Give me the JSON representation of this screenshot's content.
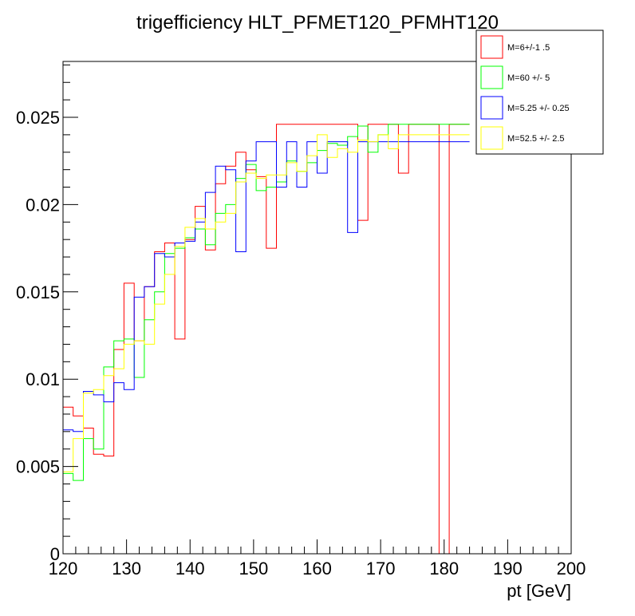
{
  "chart_data": {
    "type": "line",
    "title": "trigefficiency HLT_PFMET120_PFMHT120",
    "xlabel": "pt [GeV]",
    "ylabel": "",
    "xlim": [
      120,
      200
    ],
    "ylim": [
      0,
      0.0282
    ],
    "x_ticks": [
      120,
      130,
      140,
      150,
      160,
      170,
      180,
      190,
      200
    ],
    "x_tick_labels": [
      "120",
      "130",
      "140",
      "150",
      "160",
      "170",
      "180",
      "190",
      "200"
    ],
    "y_ticks": [
      0,
      0.005,
      0.01,
      0.015,
      0.02,
      0.025
    ],
    "y_tick_labels": [
      "0",
      "0.005",
      "0.01",
      "0.015",
      "0.02",
      "0.025"
    ],
    "legend_position": "top-right",
    "bin_width": 1.6,
    "bin_edges_start": 120,
    "series": [
      {
        "name": "M=6+/-1 .5",
        "color": "#ff0000",
        "values": [
          0.0084,
          0.0079,
          0.0072,
          0.0057,
          0.0056,
          0.0117,
          0.0155,
          0.0122,
          0.0153,
          0.0173,
          0.0178,
          0.0123,
          0.018,
          0.0199,
          0.0174,
          0.0212,
          0.0222,
          0.023,
          0.022,
          0.0216,
          0.0175,
          0.0246,
          0.0246,
          0.0246,
          0.0246,
          0.0246,
          0.0246,
          0.0246,
          0.0246,
          0.0191,
          0.0246,
          0.0246,
          0.0246,
          0.0218,
          0.0246,
          0.0246,
          0.0246,
          0.0,
          0.0246,
          0.0246
        ]
      },
      {
        "name": "M=60 +/- 5",
        "color": "#00ff00",
        "values": [
          0.0046,
          0.0042,
          0.0066,
          0.006,
          0.0107,
          0.0122,
          0.0123,
          0.0101,
          0.0134,
          0.015,
          0.0172,
          0.0175,
          0.0181,
          0.0186,
          0.0177,
          0.0195,
          0.02,
          0.0215,
          0.0223,
          0.0208,
          0.021,
          0.0213,
          0.0225,
          0.0219,
          0.0224,
          0.0231,
          0.0235,
          0.0234,
          0.0239,
          0.0245,
          0.023,
          0.024,
          0.0246,
          0.0246,
          0.0246,
          0.0246,
          0.0246,
          0.0246,
          0.0246,
          0.0246
        ]
      },
      {
        "name": "M=5.25 +/- 0.25",
        "color": "#0000ff",
        "values": [
          0.0071,
          0.007,
          0.0093,
          0.0091,
          0.0087,
          0.0098,
          0.0094,
          0.0147,
          0.0153,
          0.0172,
          0.017,
          0.0178,
          0.0179,
          0.019,
          0.0207,
          0.0222,
          0.022,
          0.0173,
          0.0225,
          0.0236,
          0.0236,
          0.021,
          0.0236,
          0.021,
          0.0236,
          0.0218,
          0.0236,
          0.0236,
          0.0184,
          0.0236,
          0.0236,
          0.0236,
          0.0236,
          0.0236,
          0.0236,
          0.0236,
          0.0236,
          0.0236,
          0.0236,
          0.0236
        ]
      },
      {
        "name": "M=52.5 +/- 2.5",
        "color": "#ffff00",
        "values": [
          0.0047,
          0.0066,
          0.0092,
          0.0094,
          0.0102,
          0.0106,
          0.012,
          0.0122,
          0.012,
          0.0143,
          0.016,
          0.0176,
          0.0187,
          0.0192,
          0.0186,
          0.019,
          0.0195,
          0.0213,
          0.0218,
          0.0215,
          0.0217,
          0.0217,
          0.0224,
          0.0219,
          0.0228,
          0.024,
          0.0227,
          0.0232,
          0.023,
          0.0237,
          0.0236,
          0.024,
          0.0232,
          0.024,
          0.024,
          0.024,
          0.024,
          0.024,
          0.024,
          0.024
        ]
      }
    ]
  }
}
